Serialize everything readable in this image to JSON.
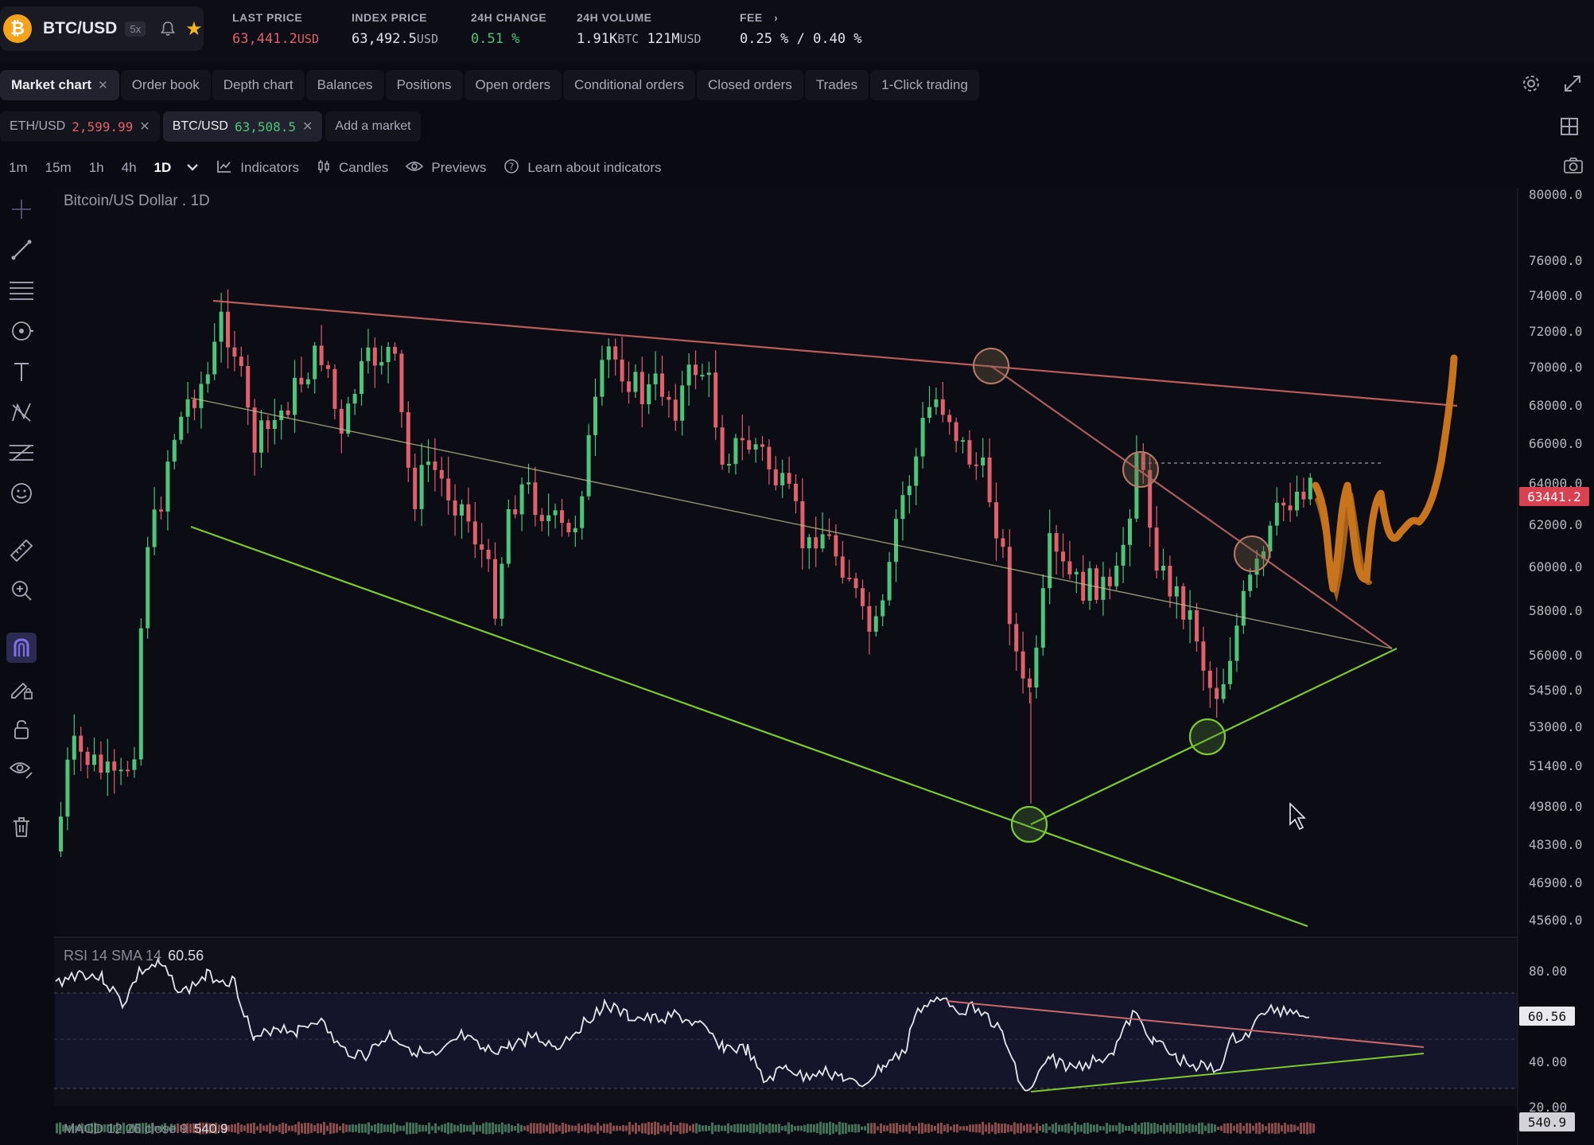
{
  "header": {
    "pair": "BTC/USD",
    "leverage": "5x",
    "stats": [
      {
        "label": "LAST PRICE",
        "value": "63,441.2",
        "unit": "USD"
      },
      {
        "label": "INDEX PRICE",
        "value": "63,492.5",
        "unit": "USD"
      },
      {
        "label": "24H CHANGE",
        "value": "0.51 %",
        "unit": ""
      },
      {
        "label": "24H VOLUME",
        "value": "1.91K",
        "unit": "BTC",
        "value2": "121M",
        "unit2": "USD"
      },
      {
        "label": "FEE",
        "value": "0.25 % / 0.40 %",
        "unit": ""
      }
    ]
  },
  "tabs": [
    "Market chart",
    "Order book",
    "Depth chart",
    "Balances",
    "Positions",
    "Open orders",
    "Conditional orders",
    "Closed orders",
    "Trades",
    "1-Click trading"
  ],
  "markets": [
    {
      "name": "ETH/USD",
      "price": "2,599.99"
    },
    {
      "name": "BTC/USD",
      "price": "63,508.5"
    }
  ],
  "add_market": "Add a market",
  "intervals": [
    "1m",
    "15m",
    "1h",
    "4h",
    "1D"
  ],
  "toolbar": {
    "indicators": "Indicators",
    "candles": "Candles",
    "previews": "Previews",
    "learn": "Learn about indicators"
  },
  "chart": {
    "title": "Bitcoin/US Dollar . 1D",
    "last_price": "63441.2",
    "price_ticks": [
      "80000.0",
      "76000.0",
      "74000.0",
      "72000.0",
      "70000.0",
      "68000.0",
      "66000.0",
      "64000.0",
      "62000.0",
      "60000.0",
      "58000.0",
      "56000.0",
      "54500.0",
      "53000.0",
      "51400.0",
      "49800.0",
      "48300.0",
      "46900.0",
      "45600.0"
    ],
    "rsi_label": "RSI 14 SMA 14",
    "rsi_value": "60.56",
    "rsi_ticks": [
      "80.00",
      "40.00",
      "20.00"
    ],
    "macd_label": "MACD 12 26 close 9",
    "macd_value": "540.9"
  },
  "colors": {
    "up": "#4cc47a",
    "down": "#e0606b",
    "accent": "#7d70e8",
    "orange": "#c8741c"
  }
}
